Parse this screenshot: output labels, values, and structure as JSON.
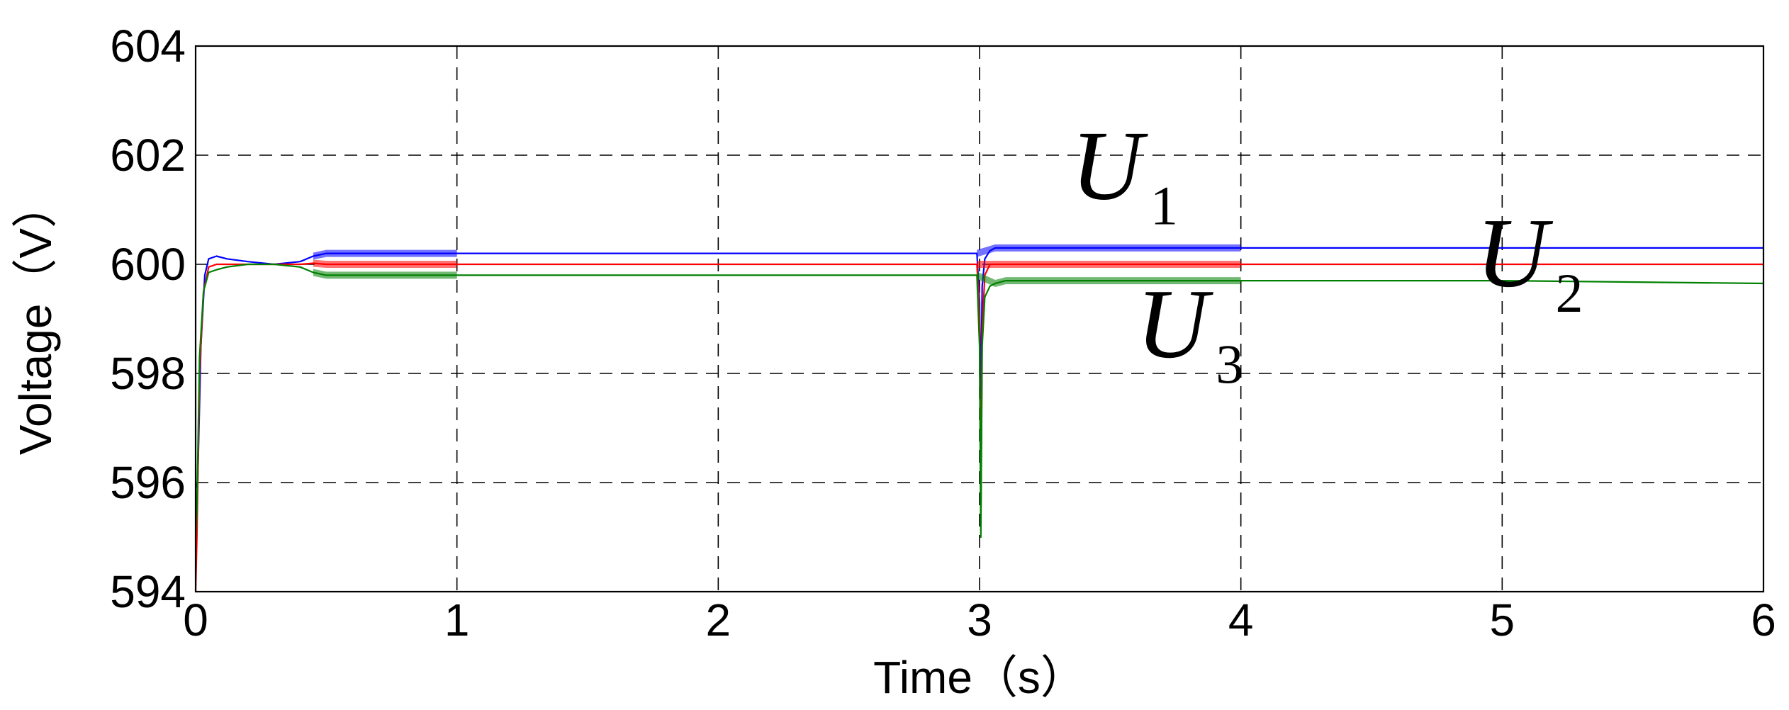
{
  "chart_data": {
    "type": "line",
    "title": "",
    "xlabel": "Time（s）",
    "ylabel": "Voltage（V）",
    "xlim": [
      0,
      6
    ],
    "ylim": [
      594,
      604
    ],
    "xticks": [
      0,
      1,
      2,
      3,
      4,
      5,
      6
    ],
    "yticks": [
      594,
      596,
      598,
      600,
      602,
      604
    ],
    "xtick_labels": [
      "0",
      "1",
      "2",
      "3",
      "4",
      "5",
      "6"
    ],
    "ytick_labels": [
      "594",
      "596",
      "598",
      "600",
      "602",
      "604"
    ],
    "grid": true,
    "legend": "none",
    "series": [
      {
        "name": "U1",
        "color": "#0000ff",
        "x": [
          0,
          0.008,
          0.02,
          0.035,
          0.05,
          0.08,
          0.12,
          0.2,
          0.3,
          0.4,
          0.45,
          0.5,
          1.0,
          2.0,
          2.99,
          3.0,
          3.005,
          3.01,
          3.02,
          3.04,
          3.06,
          3.1,
          3.2,
          3.5,
          4.0,
          5.0,
          6.0
        ],
        "y": [
          595.9,
          596.0,
          598.5,
          599.8,
          600.1,
          600.15,
          600.1,
          600.05,
          600.0,
          600.05,
          600.15,
          600.2,
          600.2,
          600.2,
          600.2,
          599.3,
          597.5,
          599.6,
          600.1,
          600.25,
          600.3,
          600.3,
          600.3,
          600.3,
          600.3,
          600.3,
          600.3
        ]
      },
      {
        "name": "U2",
        "color": "#ff0000",
        "x": [
          0,
          0.005,
          0.015,
          0.03,
          0.05,
          0.08,
          0.12,
          0.2,
          0.3,
          0.4,
          0.45,
          0.5,
          1.0,
          2.0,
          2.99,
          3.0,
          3.005,
          3.01,
          3.02,
          3.04,
          3.06,
          3.1,
          3.2,
          3.5,
          4.0,
          5.0,
          6.0
        ],
        "y": [
          594.0,
          595.0,
          598.0,
          599.5,
          599.95,
          600.0,
          600.0,
          600.0,
          600.0,
          600.0,
          600.02,
          600.0,
          600.0,
          600.0,
          600.0,
          599.0,
          595.3,
          598.8,
          599.8,
          600.0,
          600.0,
          600.0,
          600.0,
          600.0,
          600.0,
          600.0,
          600.0
        ]
      },
      {
        "name": "U3",
        "color": "#008000",
        "x": [
          0,
          0.005,
          0.015,
          0.03,
          0.05,
          0.08,
          0.12,
          0.2,
          0.3,
          0.4,
          0.45,
          0.5,
          1.0,
          2.0,
          2.99,
          3.0,
          3.005,
          3.01,
          3.02,
          3.04,
          3.06,
          3.1,
          3.2,
          3.5,
          4.0,
          5.0,
          6.0
        ],
        "y": [
          595.0,
          595.5,
          598.3,
          599.5,
          599.85,
          599.9,
          599.95,
          600.0,
          600.0,
          599.95,
          599.85,
          599.8,
          599.8,
          599.8,
          599.8,
          598.5,
          595.0,
          598.5,
          599.4,
          599.6,
          599.65,
          599.7,
          599.7,
          599.7,
          599.7,
          599.7,
          599.65
        ]
      }
    ],
    "annotations": [
      {
        "series": "U1",
        "main": "U",
        "sub": "1",
        "x": 3.35,
        "y": 601.2
      },
      {
        "series": "U2",
        "main": "U",
        "sub": "2",
        "x": 4.9,
        "y": 599.6
      },
      {
        "series": "U3",
        "main": "U",
        "sub": "3",
        "x": 3.6,
        "y": 598.3
      }
    ]
  }
}
